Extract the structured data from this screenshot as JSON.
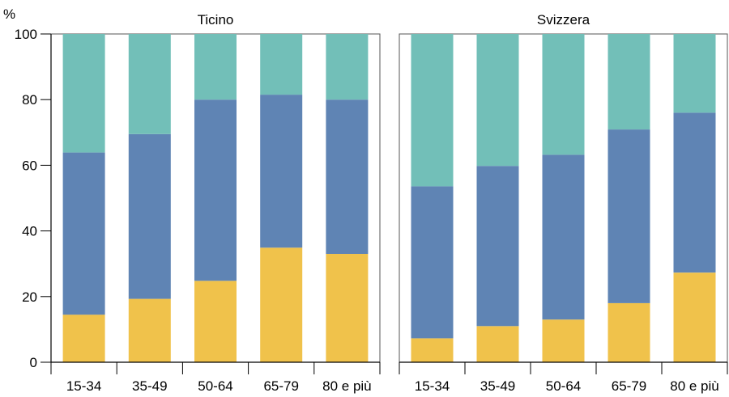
{
  "unit_label": "%",
  "colors": {
    "bottom": "#f0c24b",
    "middle": "#5f84b4",
    "top": "#72bfb8",
    "axis": "#000000",
    "frame": "#555555"
  },
  "chart_data": [
    {
      "type": "bar",
      "stacked": true,
      "title": "Ticino",
      "categories": [
        "15-34",
        "35-49",
        "50-64",
        "65-79",
        "80 e più"
      ],
      "ylim": [
        0,
        100
      ],
      "yticks": [
        0,
        20,
        40,
        60,
        80,
        100
      ],
      "grid": false,
      "series": [
        {
          "color_key": "bottom",
          "values": [
            14.5,
            19.3,
            24.8,
            34.9,
            33.0
          ]
        },
        {
          "color_key": "middle",
          "values": [
            49.4,
            50.2,
            55.2,
            46.6,
            47.0
          ]
        },
        {
          "color_key": "top",
          "values": [
            36.1,
            30.5,
            20.0,
            18.5,
            20.0
          ]
        }
      ]
    },
    {
      "type": "bar",
      "stacked": true,
      "title": "Svizzera",
      "categories": [
        "15-34",
        "35-49",
        "50-64",
        "65-79",
        "80 e più"
      ],
      "ylim": [
        0,
        100
      ],
      "yticks": [
        0,
        20,
        40,
        60,
        80,
        100
      ],
      "grid": false,
      "series": [
        {
          "color_key": "bottom",
          "values": [
            7.3,
            11.0,
            13.0,
            18.0,
            27.3
          ]
        },
        {
          "color_key": "middle",
          "values": [
            46.3,
            48.8,
            50.2,
            52.9,
            48.7
          ]
        },
        {
          "color_key": "top",
          "values": [
            46.4,
            40.2,
            36.8,
            29.1,
            24.0
          ]
        }
      ]
    }
  ]
}
